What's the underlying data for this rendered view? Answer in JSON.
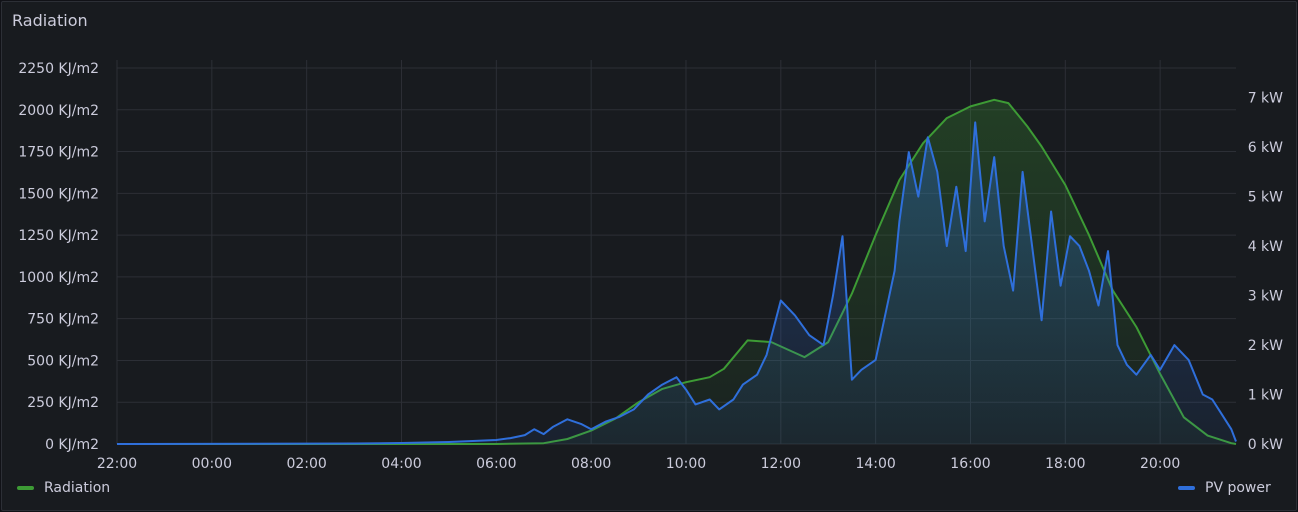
{
  "panel": {
    "title": "Radiation"
  },
  "colors": {
    "radiation": "#3d9b35",
    "pv": "#2f6fdb",
    "grid": "#2c2f36",
    "text": "#ccccdc"
  },
  "chart_data": {
    "type": "area",
    "title": "Radiation",
    "x_ticks": [
      "22:00",
      "00:00",
      "02:00",
      "04:00",
      "06:00",
      "08:00",
      "10:00",
      "12:00",
      "14:00",
      "16:00",
      "18:00",
      "20:00"
    ],
    "x_range_hours": [
      22,
      45.6
    ],
    "y_left": {
      "unit": "KJ/m2",
      "range": [
        0,
        2250
      ],
      "ticks": [
        "0 KJ/m2",
        "250 KJ/m2",
        "500 KJ/m2",
        "750 KJ/m2",
        "1000 KJ/m2",
        "1250 KJ/m2",
        "1500 KJ/m2",
        "1750 KJ/m2",
        "2000 KJ/m2",
        "2250 KJ/m2"
      ]
    },
    "y_right": {
      "unit": "kW",
      "range": [
        0,
        7.6
      ],
      "ticks": [
        "0 kW",
        "1 kW",
        "2 kW",
        "3 kW",
        "4 kW",
        "5 kW",
        "6 kW",
        "7 kW"
      ]
    },
    "grid": true,
    "legend_position": "bottom",
    "series": [
      {
        "name": "Radiation",
        "axis": "left",
        "points": [
          [
            22,
            0
          ],
          [
            30,
            0
          ],
          [
            31,
            5
          ],
          [
            31.5,
            30
          ],
          [
            32,
            80
          ],
          [
            32.5,
            150
          ],
          [
            33,
            250
          ],
          [
            33.5,
            330
          ],
          [
            34,
            370
          ],
          [
            34.5,
            400
          ],
          [
            34.8,
            450
          ],
          [
            35.3,
            620
          ],
          [
            35.8,
            610
          ],
          [
            36.5,
            520
          ],
          [
            37,
            610
          ],
          [
            37.5,
            900
          ],
          [
            38,
            1250
          ],
          [
            38.5,
            1580
          ],
          [
            39,
            1800
          ],
          [
            39.5,
            1950
          ],
          [
            40,
            2020
          ],
          [
            40.5,
            2060
          ],
          [
            40.8,
            2040
          ],
          [
            41.2,
            1900
          ],
          [
            41.5,
            1780
          ],
          [
            42,
            1550
          ],
          [
            42.5,
            1250
          ],
          [
            43,
            920
          ],
          [
            43.5,
            700
          ],
          [
            44,
            420
          ],
          [
            44.5,
            160
          ],
          [
            45,
            50
          ],
          [
            45.5,
            5
          ],
          [
            45.6,
            0
          ]
        ]
      },
      {
        "name": "PV power",
        "axis": "right",
        "points": [
          [
            22,
            0
          ],
          [
            27,
            0.01
          ],
          [
            28,
            0.02
          ],
          [
            29,
            0.04
          ],
          [
            30,
            0.08
          ],
          [
            30.3,
            0.12
          ],
          [
            30.6,
            0.18
          ],
          [
            30.8,
            0.3
          ],
          [
            31,
            0.2
          ],
          [
            31.2,
            0.35
          ],
          [
            31.5,
            0.5
          ],
          [
            31.8,
            0.4
          ],
          [
            32,
            0.3
          ],
          [
            32.3,
            0.45
          ],
          [
            32.6,
            0.55
          ],
          [
            32.9,
            0.7
          ],
          [
            33.2,
            1.0
          ],
          [
            33.5,
            1.2
          ],
          [
            33.8,
            1.35
          ],
          [
            34,
            1.1
          ],
          [
            34.2,
            0.8
          ],
          [
            34.5,
            0.9
          ],
          [
            34.7,
            0.7
          ],
          [
            35,
            0.9
          ],
          [
            35.2,
            1.2
          ],
          [
            35.5,
            1.4
          ],
          [
            35.7,
            1.8
          ],
          [
            36,
            2.9
          ],
          [
            36.3,
            2.6
          ],
          [
            36.6,
            2.2
          ],
          [
            36.9,
            2.0
          ],
          [
            37.1,
            3.0
          ],
          [
            37.3,
            4.2
          ],
          [
            37.5,
            1.3
          ],
          [
            37.7,
            1.5
          ],
          [
            38,
            1.7
          ],
          [
            38.2,
            2.6
          ],
          [
            38.4,
            3.5
          ],
          [
            38.5,
            4.5
          ],
          [
            38.7,
            5.9
          ],
          [
            38.9,
            5.0
          ],
          [
            39.1,
            6.2
          ],
          [
            39.3,
            5.5
          ],
          [
            39.5,
            4.0
          ],
          [
            39.7,
            5.2
          ],
          [
            39.9,
            3.9
          ],
          [
            40.1,
            6.5
          ],
          [
            40.3,
            4.5
          ],
          [
            40.5,
            5.8
          ],
          [
            40.7,
            4.0
          ],
          [
            40.9,
            3.1
          ],
          [
            41.1,
            5.5
          ],
          [
            41.3,
            4.0
          ],
          [
            41.5,
            2.5
          ],
          [
            41.7,
            4.7
          ],
          [
            41.9,
            3.2
          ],
          [
            42.1,
            4.2
          ],
          [
            42.3,
            4.0
          ],
          [
            42.5,
            3.5
          ],
          [
            42.7,
            2.8
          ],
          [
            42.9,
            3.9
          ],
          [
            43.1,
            2.0
          ],
          [
            43.3,
            1.6
          ],
          [
            43.5,
            1.4
          ],
          [
            43.8,
            1.8
          ],
          [
            44,
            1.5
          ],
          [
            44.3,
            2.0
          ],
          [
            44.6,
            1.7
          ],
          [
            44.9,
            1.0
          ],
          [
            45.1,
            0.9
          ],
          [
            45.3,
            0.6
          ],
          [
            45.5,
            0.3
          ],
          [
            45.6,
            0.05
          ]
        ]
      }
    ]
  },
  "legend": {
    "radiation_label": "Radiation",
    "pv_label": "PV power"
  }
}
